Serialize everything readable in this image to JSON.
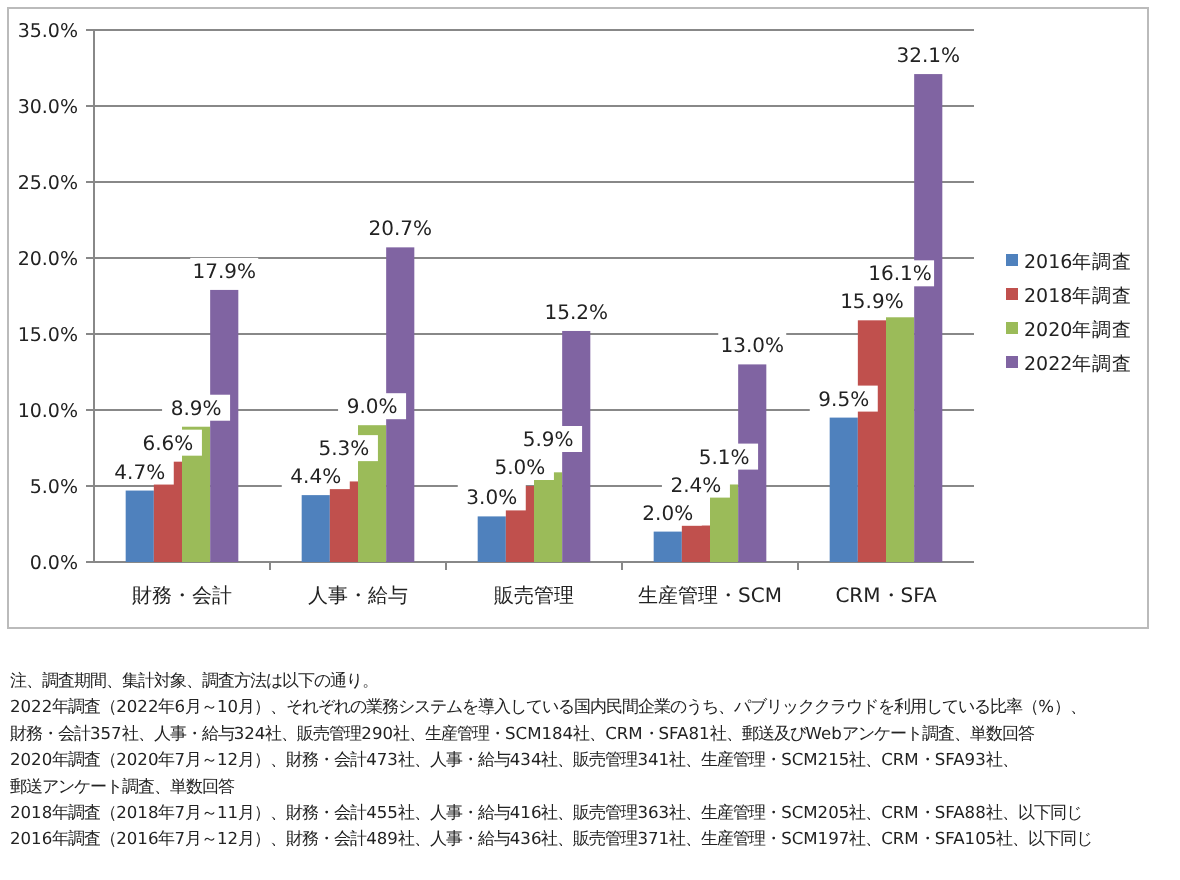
{
  "chart_data": {
    "type": "bar",
    "categories": [
      "財務・会計",
      "人事・給与",
      "販売管理",
      "生産管理・SCM",
      "CRM・SFA"
    ],
    "series": [
      {
        "name": "2016年調査",
        "color": "#4f81bd",
        "values": [
          4.7,
          4.4,
          3.0,
          2.0,
          9.5
        ],
        "value_labels": [
          "4.7%",
          "4.4%",
          "3.0%",
          "2.0%",
          "9.5%"
        ]
      },
      {
        "name": "2018年調査",
        "color": "#c0504d",
        "values": [
          6.6,
          5.3,
          5.0,
          2.4,
          15.9
        ],
        "value_labels": [
          "6.6%",
          "5.3%",
          "5.0%",
          "2.4%",
          "15.9%"
        ]
      },
      {
        "name": "2020年調査",
        "color": "#9bbb59",
        "values": [
          8.9,
          9.0,
          5.9,
          5.1,
          16.1
        ],
        "value_labels": [
          "8.9%",
          "9.0%",
          "5.9%",
          "5.1%",
          "16.1%"
        ]
      },
      {
        "name": "2022年調査",
        "color": "#8064a2",
        "values": [
          17.9,
          20.7,
          15.2,
          13.0,
          32.1
        ],
        "value_labels": [
          "17.9%",
          "20.7%",
          "15.2%",
          "13.0%",
          "32.1%"
        ]
      }
    ],
    "ylim": [
      0,
      35
    ],
    "yticks": [
      {
        "value": 0,
        "label": "0.0%"
      },
      {
        "value": 5,
        "label": "5.0%"
      },
      {
        "value": 10,
        "label": "10.0%"
      },
      {
        "value": 15,
        "label": "15.0%"
      },
      {
        "value": 20,
        "label": "20.0%"
      },
      {
        "value": 25,
        "label": "25.0%"
      },
      {
        "value": 30,
        "label": "30.0%"
      },
      {
        "value": 35,
        "label": "35.0%"
      }
    ],
    "grid": "y",
    "legend": "right",
    "annotations": [
      "注、調査期間、集計対象、調査方法は以下の通り。",
      "2022年調査（2022年6月～10月）、それぞれの業務システムを導入している国内民間企業のうち、パブリッククラウドを利用している比率（%）、",
      "財務・会計357社、人事・給与324社、販売管理290社、生産管理・SCM184社、CRM・SFA81社、郵送及びWebアンケート調査、単数回答",
      "2020年調査（2020年7月～12月）、財務・会計473社、人事・給与434社、販売管理341社、生産管理・SCM215社、CRM・SFA93社、",
      "郵送アンケート調査、単数回答",
      "2018年調査（2018年7月～11月）、財務・会計455社、人事・給与416社、販売管理363社、生産管理・SCM205社、CRM・SFA88社、以下同じ",
      "2016年調査（2016年7月～12月）、財務・会計489社、人事・給与436社、販売管理371社、生産管理・SCM197社、CRM・SFA105社、以下同じ"
    ]
  }
}
